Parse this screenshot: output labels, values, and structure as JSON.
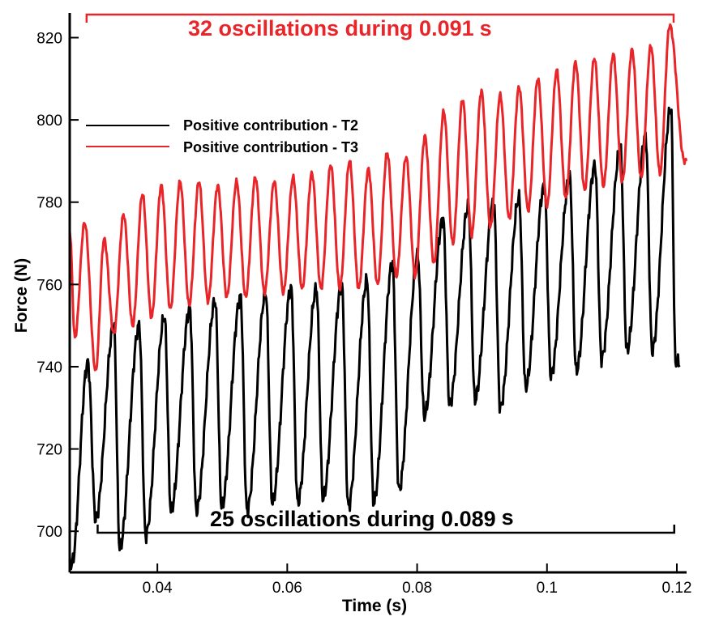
{
  "chart_data": {
    "type": "line",
    "title": "",
    "xlabel": "Time (s)",
    "ylabel": "Force (N)",
    "xlim": [
      0.0265,
      0.1215
    ],
    "ylim": [
      690,
      826
    ],
    "xticks": [
      0.04,
      0.06,
      0.08,
      0.1,
      0.12
    ],
    "xtick_labels": [
      "0.04",
      "0.06",
      "0.08",
      "0.1",
      "0.12"
    ],
    "yticks": [
      700,
      720,
      740,
      760,
      780,
      800,
      820
    ],
    "ytick_labels": [
      "700",
      "720",
      "740",
      "760",
      "780",
      "800",
      "820"
    ],
    "grid": false,
    "legend_position": "upper-left",
    "series": [
      {
        "name": "Positive contribution - T2",
        "color": "#000000",
        "t_start": 0.0265,
        "t_end": 0.1205,
        "x_peaks": [
          0.0293,
          0.0333,
          0.0372,
          0.0411,
          0.045,
          0.0489,
          0.0528,
          0.0567,
          0.0606,
          0.0645,
          0.0684,
          0.0723,
          0.0762,
          0.0801,
          0.084,
          0.0879,
          0.0918,
          0.0957,
          0.0996,
          0.1035,
          0.1074,
          0.1113,
          0.1152,
          0.1191
        ],
        "y_peaks": [
          741,
          750,
          750,
          752,
          754,
          756,
          757,
          758,
          759,
          759,
          760,
          761,
          765,
          767,
          776,
          779,
          780,
          781,
          784,
          786,
          789,
          793,
          796,
          803
        ],
        "x_troughs": [
          0.0268,
          0.0305,
          0.0342,
          0.0382,
          0.0421,
          0.046,
          0.0499,
          0.0538,
          0.0577,
          0.0616,
          0.0655,
          0.0694,
          0.0733,
          0.0772,
          0.0811,
          0.085,
          0.0889,
          0.0928,
          0.0967,
          0.1006,
          0.1045,
          0.1084,
          0.1123,
          0.1162,
          0.1198
        ],
        "y_troughs": [
          692,
          703,
          696,
          699,
          705,
          705,
          706,
          705,
          707,
          707,
          708,
          706,
          707,
          710,
          728,
          731,
          732,
          730,
          735,
          738,
          739,
          742,
          744,
          744,
          741
        ]
      },
      {
        "name": "Positive contribution - T3",
        "color": "#e8262a",
        "t_start": 0.0265,
        "t_end": 0.1215,
        "x_peaks": [
          0.0265,
          0.0288,
          0.0318,
          0.0348,
          0.0377,
          0.0406,
          0.0435,
          0.0464,
          0.0493,
          0.0522,
          0.0551,
          0.058,
          0.0609,
          0.0638,
          0.0667,
          0.0696,
          0.0725,
          0.0754,
          0.0783,
          0.0812,
          0.0841,
          0.087,
          0.0899,
          0.0928,
          0.0957,
          0.0986,
          0.1015,
          0.1044,
          0.1073,
          0.1102,
          0.1131,
          0.116,
          0.1189
        ],
        "y_peaks": [
          773,
          775,
          771,
          777,
          782,
          784,
          785,
          785,
          784,
          785,
          786,
          785,
          786,
          787,
          789,
          790,
          788,
          792,
          791,
          796,
          802,
          805,
          807,
          806,
          808,
          810,
          812,
          814,
          815,
          816,
          817,
          818,
          823
        ],
        "x_troughs": [
          0.0273,
          0.0305,
          0.0333,
          0.0362,
          0.0391,
          0.042,
          0.0449,
          0.0478,
          0.0507,
          0.0536,
          0.0565,
          0.0594,
          0.0623,
          0.0652,
          0.0681,
          0.071,
          0.0739,
          0.0768,
          0.0797,
          0.0826,
          0.0855,
          0.0884,
          0.0913,
          0.0942,
          0.0971,
          0.1,
          0.1029,
          0.1058,
          0.1087,
          0.1116,
          0.1145,
          0.1174,
          0.1212
        ],
        "y_troughs": [
          747,
          739,
          748,
          750,
          752,
          754,
          755,
          756,
          757,
          757,
          758,
          758,
          759,
          759,
          759,
          759,
          760,
          762,
          762,
          765,
          770,
          772,
          774,
          776,
          778,
          779,
          781,
          783,
          784,
          785,
          786,
          787,
          790
        ]
      }
    ],
    "annotations": {
      "top_text_main": "32 oscillations during 0.091",
      "top_text_unit": "s",
      "top_color": "#e8262a",
      "top_bracket": [
        0.0291,
        0.1195
      ],
      "bottom_text_main": "25 oscillations during 0.089",
      "bottom_text_unit": "s",
      "bottom_color": "#000000",
      "bottom_bracket": [
        0.0308,
        0.1196
      ]
    }
  }
}
